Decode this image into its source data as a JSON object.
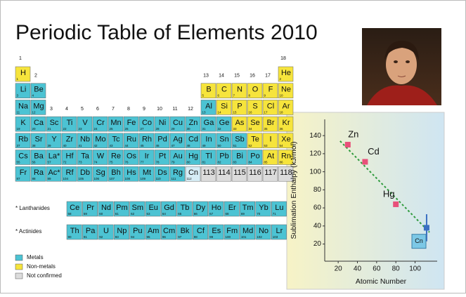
{
  "title": "Periodic Table of Elements 2010",
  "table": {
    "group_numbers": [
      1,
      2,
      3,
      4,
      5,
      6,
      7,
      8,
      9,
      10,
      11,
      12,
      13,
      14,
      15,
      16,
      17,
      18
    ],
    "periods": [
      [
        {
          "symbol": "H",
          "number": 1,
          "color": "#f6e43c"
        },
        {
          "symbol": "He",
          "number": 2,
          "color": "#f6e43c"
        }
      ],
      [
        {
          "symbol": "Li",
          "number": 3,
          "color": "#4cc3d3"
        },
        {
          "symbol": "Be",
          "number": 4,
          "color": "#4cc3d3"
        },
        {
          "symbol": "B",
          "number": 5,
          "color": "#f6e43c"
        },
        {
          "symbol": "C",
          "number": 6,
          "color": "#f6e43c"
        },
        {
          "symbol": "N",
          "number": 7,
          "color": "#f6e43c"
        },
        {
          "symbol": "O",
          "number": 8,
          "color": "#f6e43c"
        },
        {
          "symbol": "F",
          "number": 9,
          "color": "#f6e43c"
        },
        {
          "symbol": "Ne",
          "number": 10,
          "color": "#f6e43c"
        }
      ],
      [
        {
          "symbol": "Na",
          "number": 11,
          "color": "#4cc3d3"
        },
        {
          "symbol": "Mg",
          "number": 12,
          "color": "#4cc3d3"
        },
        {
          "symbol": "Al",
          "number": 13,
          "color": "#4cc3d3"
        },
        {
          "symbol": "Si",
          "number": 14,
          "color": "#f6e43c"
        },
        {
          "symbol": "P",
          "number": 15,
          "color": "#f6e43c"
        },
        {
          "symbol": "S",
          "number": 16,
          "color": "#f6e43c"
        },
        {
          "symbol": "Cl",
          "number": 17,
          "color": "#f6e43c"
        },
        {
          "symbol": "Ar",
          "number": 18,
          "color": "#f6e43c"
        }
      ],
      [
        {
          "symbol": "K",
          "number": 19,
          "color": "#4cc3d3"
        },
        {
          "symbol": "Ca",
          "number": 20,
          "color": "#4cc3d3"
        },
        {
          "symbol": "Sc",
          "number": 21,
          "color": "#4cc3d3"
        },
        {
          "symbol": "Ti",
          "number": 22,
          "color": "#4cc3d3"
        },
        {
          "symbol": "V",
          "number": 23,
          "color": "#4cc3d3"
        },
        {
          "symbol": "Cr",
          "number": 24,
          "color": "#4cc3d3"
        },
        {
          "symbol": "Mn",
          "number": 25,
          "color": "#4cc3d3"
        },
        {
          "symbol": "Fe",
          "number": 26,
          "color": "#4cc3d3"
        },
        {
          "symbol": "Co",
          "number": 27,
          "color": "#4cc3d3"
        },
        {
          "symbol": "Ni",
          "number": 28,
          "color": "#4cc3d3"
        },
        {
          "symbol": "Cu",
          "number": 29,
          "color": "#4cc3d3"
        },
        {
          "symbol": "Zn",
          "number": 30,
          "color": "#4cc3d3"
        },
        {
          "symbol": "Ga",
          "number": 31,
          "color": "#4cc3d3"
        },
        {
          "symbol": "Ge",
          "number": 32,
          "color": "#4cc3d3"
        },
        {
          "symbol": "As",
          "number": 33,
          "color": "#f6e43c"
        },
        {
          "symbol": "Se",
          "number": 34,
          "color": "#f6e43c"
        },
        {
          "symbol": "Br",
          "number": 35,
          "color": "#f6e43c"
        },
        {
          "symbol": "Kr",
          "number": 36,
          "color": "#f6e43c"
        }
      ],
      [
        {
          "symbol": "Rb",
          "number": 37,
          "color": "#4cc3d3"
        },
        {
          "symbol": "Sr",
          "number": 38,
          "color": "#4cc3d3"
        },
        {
          "symbol": "Y",
          "number": 39,
          "color": "#4cc3d3"
        },
        {
          "symbol": "Zr",
          "number": 40,
          "color": "#4cc3d3"
        },
        {
          "symbol": "Nb",
          "number": 41,
          "color": "#4cc3d3"
        },
        {
          "symbol": "Mo",
          "number": 42,
          "color": "#4cc3d3"
        },
        {
          "symbol": "Tc",
          "number": 43,
          "color": "#4cc3d3"
        },
        {
          "symbol": "Ru",
          "number": 44,
          "color": "#4cc3d3"
        },
        {
          "symbol": "Rh",
          "number": 45,
          "color": "#4cc3d3"
        },
        {
          "symbol": "Pd",
          "number": 46,
          "color": "#4cc3d3"
        },
        {
          "symbol": "Ag",
          "number": 47,
          "color": "#4cc3d3"
        },
        {
          "symbol": "Cd",
          "number": 48,
          "color": "#4cc3d3"
        },
        {
          "symbol": "In",
          "number": 49,
          "color": "#4cc3d3"
        },
        {
          "symbol": "Sn",
          "number": 50,
          "color": "#4cc3d3"
        },
        {
          "symbol": "Sb",
          "number": 51,
          "color": "#4cc3d3"
        },
        {
          "symbol": "Te",
          "number": 52,
          "color": "#f6e43c"
        },
        {
          "symbol": "I",
          "number": 53,
          "color": "#f6e43c"
        },
        {
          "symbol": "Xe",
          "number": 54,
          "color": "#f6e43c"
        }
      ],
      [
        {
          "symbol": "Cs",
          "number": 55,
          "color": "#4cc3d3"
        },
        {
          "symbol": "Ba",
          "number": 56,
          "color": "#4cc3d3"
        },
        {
          "symbol": "La*",
          "number": 57,
          "color": "#4cc3d3"
        },
        {
          "symbol": "Hf",
          "number": 72,
          "color": "#4cc3d3"
        },
        {
          "symbol": "Ta",
          "number": 73,
          "color": "#4cc3d3"
        },
        {
          "symbol": "W",
          "number": 74,
          "color": "#4cc3d3"
        },
        {
          "symbol": "Re",
          "number": 75,
          "color": "#4cc3d3"
        },
        {
          "symbol": "Os",
          "number": 76,
          "color": "#4cc3d3"
        },
        {
          "symbol": "Ir",
          "number": 77,
          "color": "#4cc3d3"
        },
        {
          "symbol": "Pt",
          "number": 78,
          "color": "#4cc3d3"
        },
        {
          "symbol": "Au",
          "number": 79,
          "color": "#4cc3d3"
        },
        {
          "symbol": "Hg",
          "number": 80,
          "color": "#4cc3d3"
        },
        {
          "symbol": "Tl",
          "number": 81,
          "color": "#4cc3d3"
        },
        {
          "symbol": "Pb",
          "number": 82,
          "color": "#4cc3d3"
        },
        {
          "symbol": "Bi",
          "number": 83,
          "color": "#4cc3d3"
        },
        {
          "symbol": "Po",
          "number": 84,
          "color": "#4cc3d3"
        },
        {
          "symbol": "At",
          "number": 85,
          "color": "#f6e43c"
        },
        {
          "symbol": "Rn",
          "number": 86,
          "color": "#f6e43c"
        }
      ],
      [
        {
          "symbol": "Fr",
          "number": 87,
          "color": "#4cc3d3"
        },
        {
          "symbol": "Ra",
          "number": 88,
          "color": "#4cc3d3"
        },
        {
          "symbol": "Ac*",
          "number": 89,
          "color": "#4cc3d3"
        },
        {
          "symbol": "Rf",
          "number": 104,
          "color": "#4cc3d3"
        },
        {
          "symbol": "Db",
          "number": 105,
          "color": "#4cc3d3"
        },
        {
          "symbol": "Sg",
          "number": 106,
          "color": "#4cc3d3"
        },
        {
          "symbol": "Bh",
          "number": 107,
          "color": "#4cc3d3"
        },
        {
          "symbol": "Hs",
          "number": 108,
          "color": "#4cc3d3"
        },
        {
          "symbol": "Mt",
          "number": 109,
          "color": "#4cc3d3"
        },
        {
          "symbol": "Ds",
          "number": 110,
          "color": "#4cc3d3"
        },
        {
          "symbol": "Rg",
          "number": 111,
          "color": "#4cc3d3"
        },
        {
          "symbol": "Cn",
          "number": 112,
          "color": "#d6edf6"
        },
        {
          "symbol": "113",
          "color": "#dcdcdc"
        },
        {
          "symbol": "114",
          "color": "#dcdcdc"
        },
        {
          "symbol": "115",
          "color": "#dcdcdc"
        },
        {
          "symbol": "116",
          "color": "#dcdcdc"
        },
        {
          "symbol": "117",
          "color": "#dcdcdc"
        },
        {
          "symbol": "118",
          "color": "#dcdcdc"
        }
      ]
    ],
    "lanthanides": {
      "label": "* Lanthanides",
      "cells": [
        {
          "symbol": "Ce",
          "number": 58,
          "color": "#4cc3d3"
        },
        {
          "symbol": "Pr",
          "number": 59,
          "color": "#4cc3d3"
        },
        {
          "symbol": "Nd",
          "number": 60,
          "color": "#4cc3d3"
        },
        {
          "symbol": "Pm",
          "number": 61,
          "color": "#4cc3d3"
        },
        {
          "symbol": "Sm",
          "number": 62,
          "color": "#4cc3d3"
        },
        {
          "symbol": "Eu",
          "number": 63,
          "color": "#4cc3d3"
        },
        {
          "symbol": "Gd",
          "number": 64,
          "color": "#4cc3d3"
        },
        {
          "symbol": "Tb",
          "number": 65,
          "color": "#4cc3d3"
        },
        {
          "symbol": "Dy",
          "number": 66,
          "color": "#4cc3d3"
        },
        {
          "symbol": "Ho",
          "number": 67,
          "color": "#4cc3d3"
        },
        {
          "symbol": "Er",
          "number": 68,
          "color": "#4cc3d3"
        },
        {
          "symbol": "Tm",
          "number": 69,
          "color": "#4cc3d3"
        },
        {
          "symbol": "Yb",
          "number": 70,
          "color": "#4cc3d3"
        },
        {
          "symbol": "Lu",
          "number": 71,
          "color": "#4cc3d3"
        }
      ]
    },
    "actinides": {
      "label": "* Actinides",
      "cells": [
        {
          "symbol": "Th",
          "number": 90,
          "color": "#4cc3d3"
        },
        {
          "symbol": "Pa",
          "number": 91,
          "color": "#4cc3d3"
        },
        {
          "symbol": "U",
          "number": 92,
          "color": "#4cc3d3"
        },
        {
          "symbol": "Np",
          "number": 93,
          "color": "#4cc3d3"
        },
        {
          "symbol": "Pu",
          "number": 94,
          "color": "#4cc3d3"
        },
        {
          "symbol": "Am",
          "number": 95,
          "color": "#4cc3d3"
        },
        {
          "symbol": "Cm",
          "number": 96,
          "color": "#4cc3d3"
        },
        {
          "symbol": "Bk",
          "number": 97,
          "color": "#4cc3d3"
        },
        {
          "symbol": "Cf",
          "number": 98,
          "color": "#4cc3d3"
        },
        {
          "symbol": "Es",
          "number": 99,
          "color": "#4cc3d3"
        },
        {
          "symbol": "Fm",
          "number": 100,
          "color": "#4cc3d3"
        },
        {
          "symbol": "Md",
          "number": 101,
          "color": "#4cc3d3"
        },
        {
          "symbol": "No",
          "number": 102,
          "color": "#4cc3d3"
        },
        {
          "symbol": "Lr",
          "number": 103,
          "color": "#4cc3d3"
        }
      ]
    },
    "legend": [
      {
        "label": "Metals",
        "color": "#4cc3d3"
      },
      {
        "label": "Non-metals",
        "color": "#f6e43c"
      },
      {
        "label": "Not confirmed",
        "color": "#dcdcdc"
      }
    ]
  },
  "chart_data": {
    "type": "scatter",
    "x_label": "Atomic Number",
    "y_label": "Sublimation Enthalpy (kJ/mol)",
    "xlim": [
      6,
      123
    ],
    "xticks": [
      20,
      40,
      60,
      80,
      100
    ],
    "ylim": [
      1,
      158
    ],
    "yticks": [
      20,
      40,
      60,
      80,
      100,
      120,
      140
    ],
    "series": [
      {
        "color": "#e8507a",
        "x": [
          30,
          48,
          80
        ],
        "values": [
          130,
          111,
          64
        ],
        "labels": [
          "Zn",
          "Cd",
          "Hg"
        ]
      },
      {
        "color": "#3a6fc2",
        "x": [
          112
        ],
        "values": [
          38
        ],
        "errors": [
          15
        ]
      }
    ],
    "trend": {
      "color": "#2e9a3c",
      "x": [
        22,
        115
      ],
      "y": [
        134,
        33
      ]
    },
    "annotations": [
      {
        "text": "Cn",
        "x": 104,
        "y": 23
      }
    ]
  }
}
